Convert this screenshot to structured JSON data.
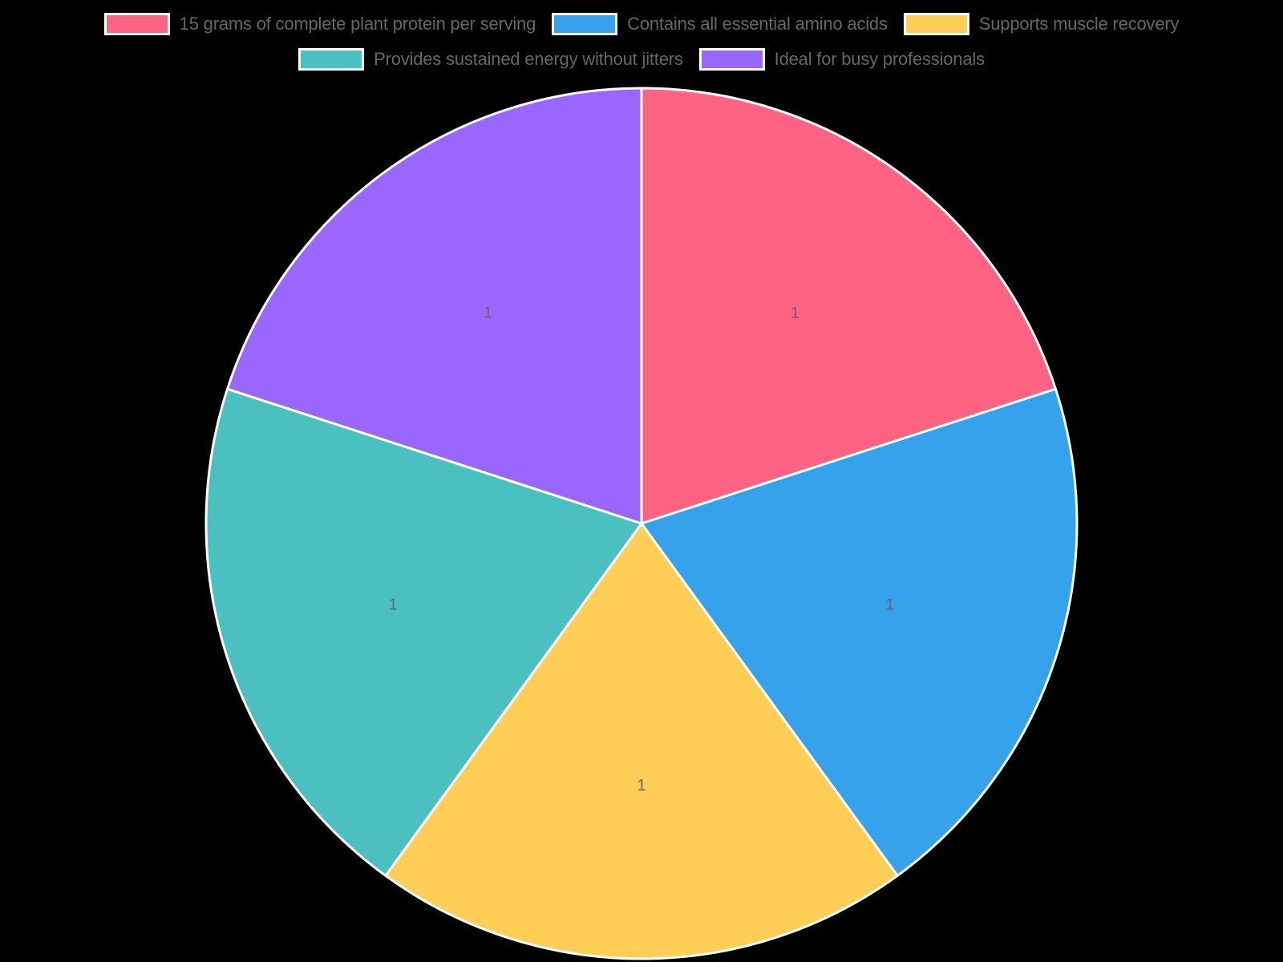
{
  "chart_data": {
    "type": "pie",
    "title": "",
    "categories": [
      "15 grams of complete plant protein per serving",
      "Contains all essential amino acids",
      "Supports muscle recovery",
      "Provides sustained energy without jitters",
      "Ideal for busy professionals"
    ],
    "values": [
      1,
      1,
      1,
      1,
      1
    ],
    "colors": [
      "#FF6384",
      "#36A2EB",
      "#FFCE56",
      "#4BC0C0",
      "#9966FF"
    ],
    "data_labels": [
      "1",
      "1",
      "1",
      "1",
      "1"
    ],
    "legend_position": "top",
    "border_color": "#FFFFFF"
  },
  "legend": {
    "rows": [
      [
        {
          "label": "15 grams of complete plant protein per serving",
          "color": "#FF6384"
        },
        {
          "label": "Contains all essential amino acids",
          "color": "#36A2EB"
        },
        {
          "label": "Supports muscle recovery",
          "color": "#FFCE56"
        }
      ],
      [
        {
          "label": "Provides sustained energy without jitters",
          "color": "#4BC0C0"
        },
        {
          "label": "Ideal for busy professionals",
          "color": "#9966FF"
        }
      ]
    ]
  }
}
